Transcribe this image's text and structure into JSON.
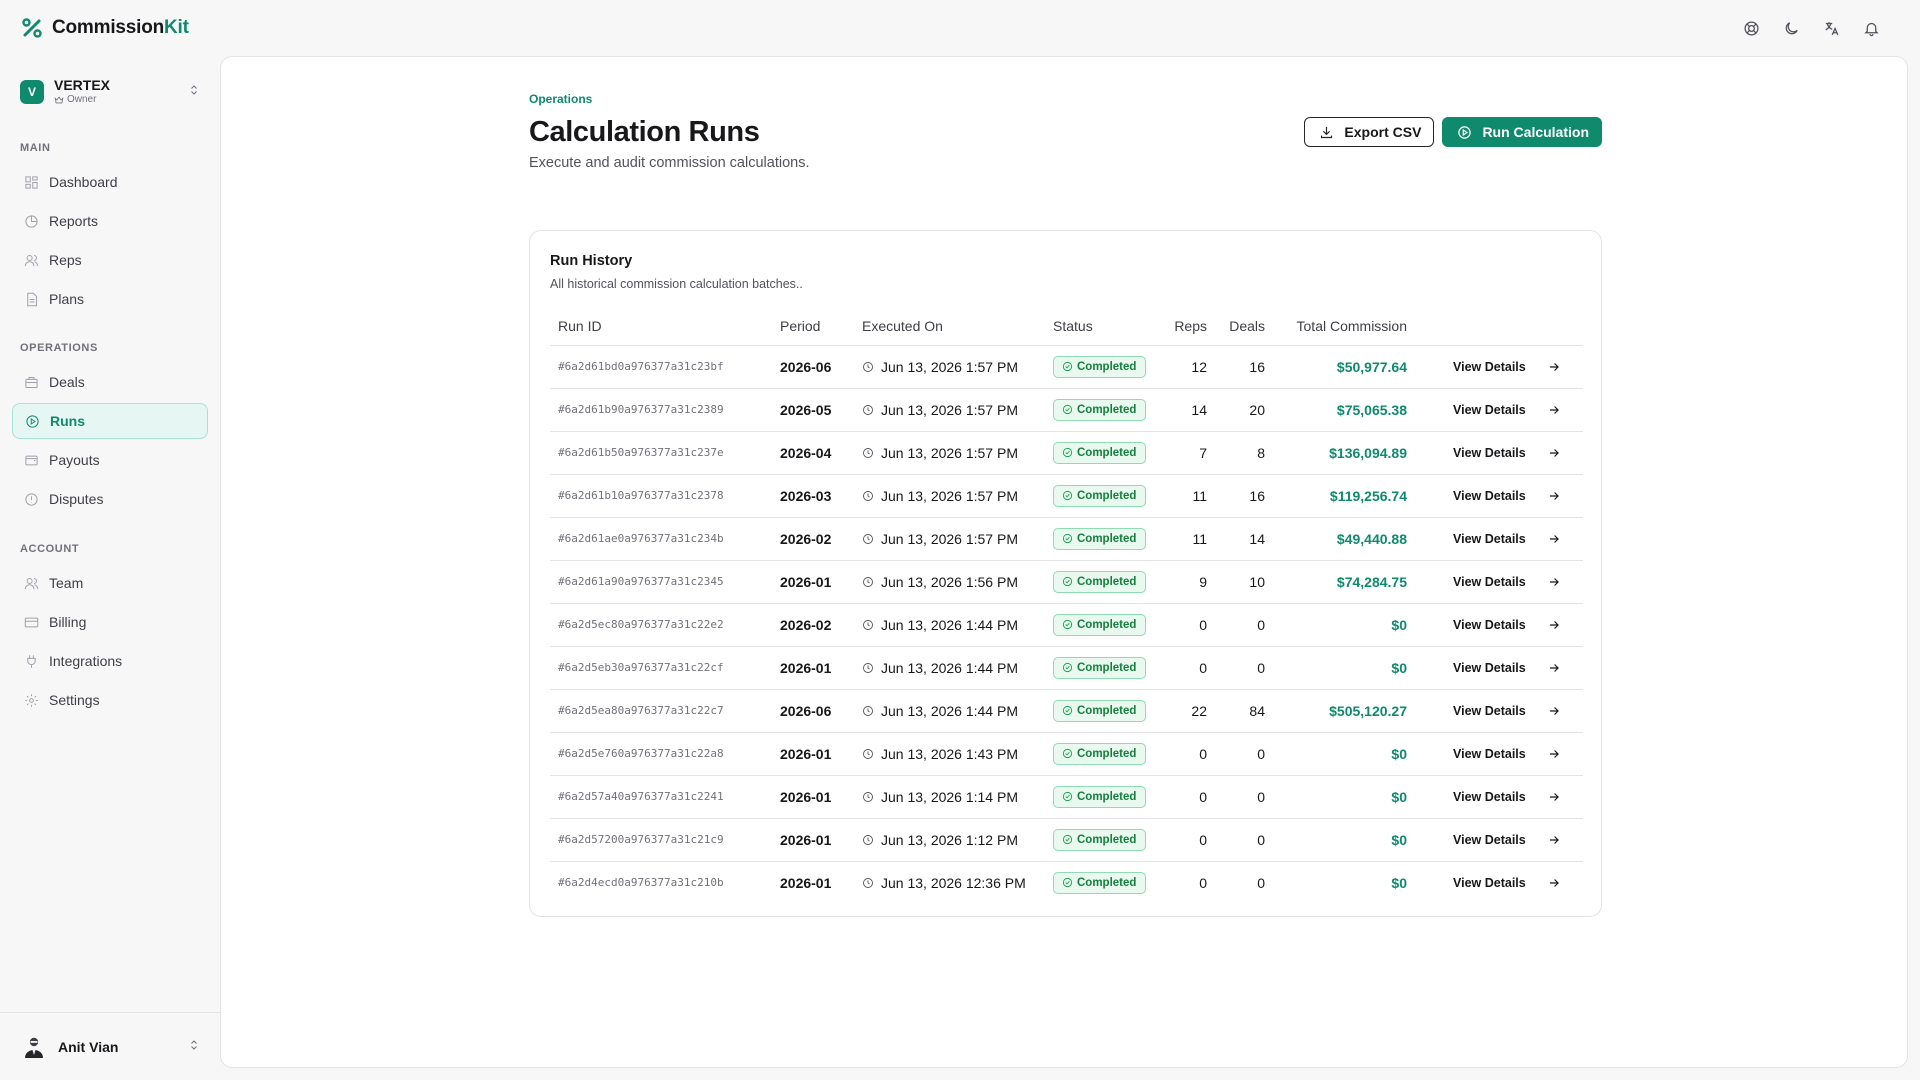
{
  "brand": {
    "name_a": "Commission",
    "name_b": "Kit"
  },
  "header": {
    "icons": [
      "help-icon",
      "moon-icon",
      "translate-icon",
      "bell-icon"
    ]
  },
  "org": {
    "initial": "V",
    "name": "VERTEX",
    "role": "Owner"
  },
  "sidebar": {
    "sections": [
      {
        "title": "MAIN",
        "items": [
          {
            "label": "Dashboard",
            "icon": "dashboard-icon"
          },
          {
            "label": "Reports",
            "icon": "reports-icon"
          },
          {
            "label": "Reps",
            "icon": "reps-icon"
          },
          {
            "label": "Plans",
            "icon": "plans-icon"
          }
        ]
      },
      {
        "title": "OPERATIONS",
        "items": [
          {
            "label": "Deals",
            "icon": "deals-icon"
          },
          {
            "label": "Runs",
            "icon": "runs-icon",
            "active": true
          },
          {
            "label": "Payouts",
            "icon": "payouts-icon"
          },
          {
            "label": "Disputes",
            "icon": "disputes-icon"
          }
        ]
      },
      {
        "title": "ACCOUNT",
        "items": [
          {
            "label": "Team",
            "icon": "team-icon"
          },
          {
            "label": "Billing",
            "icon": "billing-icon"
          },
          {
            "label": "Integrations",
            "icon": "integrations-icon"
          },
          {
            "label": "Settings",
            "icon": "settings-icon"
          }
        ]
      }
    ]
  },
  "user": {
    "name": "Anit Vian"
  },
  "page": {
    "breadcrumb": "Operations",
    "title": "Calculation Runs",
    "subtitle": "Execute and audit commission calculations.",
    "export_label": "Export CSV",
    "run_label": "Run Calculation"
  },
  "card": {
    "title": "Run History",
    "subtitle": "All historical commission calculation batches..",
    "columns": {
      "run_id": "Run ID",
      "period": "Period",
      "executed": "Executed On",
      "status": "Status",
      "reps": "Reps",
      "deals": "Deals",
      "total": "Total Commission"
    },
    "action_label": "View Details",
    "rows": [
      {
        "id": "#6a2d61bd0a976377a31c23bf",
        "period": "2026-06",
        "executed": "Jun 13, 2026 1:57 PM",
        "status": "Completed",
        "reps": "12",
        "deals": "16",
        "total": "$50,977.64"
      },
      {
        "id": "#6a2d61b90a976377a31c2389",
        "period": "2026-05",
        "executed": "Jun 13, 2026 1:57 PM",
        "status": "Completed",
        "reps": "14",
        "deals": "20",
        "total": "$75,065.38"
      },
      {
        "id": "#6a2d61b50a976377a31c237e",
        "period": "2026-04",
        "executed": "Jun 13, 2026 1:57 PM",
        "status": "Completed",
        "reps": "7",
        "deals": "8",
        "total": "$136,094.89"
      },
      {
        "id": "#6a2d61b10a976377a31c2378",
        "period": "2026-03",
        "executed": "Jun 13, 2026 1:57 PM",
        "status": "Completed",
        "reps": "11",
        "deals": "16",
        "total": "$119,256.74"
      },
      {
        "id": "#6a2d61ae0a976377a31c234b",
        "period": "2026-02",
        "executed": "Jun 13, 2026 1:57 PM",
        "status": "Completed",
        "reps": "11",
        "deals": "14",
        "total": "$49,440.88"
      },
      {
        "id": "#6a2d61a90a976377a31c2345",
        "period": "2026-01",
        "executed": "Jun 13, 2026 1:56 PM",
        "status": "Completed",
        "reps": "9",
        "deals": "10",
        "total": "$74,284.75"
      },
      {
        "id": "#6a2d5ec80a976377a31c22e2",
        "period": "2026-02",
        "executed": "Jun 13, 2026 1:44 PM",
        "status": "Completed",
        "reps": "0",
        "deals": "0",
        "total": "$0"
      },
      {
        "id": "#6a2d5eb30a976377a31c22cf",
        "period": "2026-01",
        "executed": "Jun 13, 2026 1:44 PM",
        "status": "Completed",
        "reps": "0",
        "deals": "0",
        "total": "$0"
      },
      {
        "id": "#6a2d5ea80a976377a31c22c7",
        "period": "2026-06",
        "executed": "Jun 13, 2026 1:44 PM",
        "status": "Completed",
        "reps": "22",
        "deals": "84",
        "total": "$505,120.27"
      },
      {
        "id": "#6a2d5e760a976377a31c22a8",
        "period": "2026-01",
        "executed": "Jun 13, 2026 1:43 PM",
        "status": "Completed",
        "reps": "0",
        "deals": "0",
        "total": "$0"
      },
      {
        "id": "#6a2d57a40a976377a31c2241",
        "period": "2026-01",
        "executed": "Jun 13, 2026 1:14 PM",
        "status": "Completed",
        "reps": "0",
        "deals": "0",
        "total": "$0"
      },
      {
        "id": "#6a2d57200a976377a31c21c9",
        "period": "2026-01",
        "executed": "Jun 13, 2026 1:12 PM",
        "status": "Completed",
        "reps": "0",
        "deals": "0",
        "total": "$0"
      },
      {
        "id": "#6a2d4ecd0a976377a31c210b",
        "period": "2026-01",
        "executed": "Jun 13, 2026 12:36 PM",
        "status": "Completed",
        "reps": "0",
        "deals": "0",
        "total": "$0"
      }
    ]
  },
  "colors": {
    "accent": "#0f8a6d",
    "success": "#15803d",
    "success_bg": "#e9f9f0"
  }
}
